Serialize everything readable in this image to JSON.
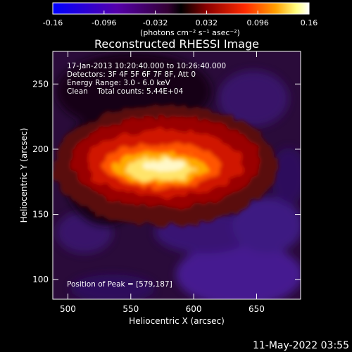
{
  "chart_data": {
    "type": "heatmap",
    "title": "Reconstructed RHESSI Image",
    "xlabel": "Heliocentric X (arcsec)",
    "ylabel": "Heliocentric Y (arcsec)",
    "xlim": [
      488,
      685
    ],
    "ylim": [
      85,
      275
    ],
    "xticks": [
      500,
      550,
      600,
      650
    ],
    "yticks": [
      100,
      150,
      200,
      250
    ],
    "colorbar": {
      "range": [
        -0.16,
        0.16
      ],
      "ticks": [
        "-0.16",
        "-0.096",
        "-0.032",
        "0.032",
        "0.096",
        "0.16"
      ],
      "tick_values": [
        -0.16,
        -0.096,
        -0.032,
        0.032,
        0.096,
        0.16
      ],
      "label": "(photons cm⁻² s⁻¹ asec⁻²)",
      "colors": [
        "#0000ff",
        "#4b0082",
        "#6a0dad",
        "#000000",
        "#8b0000",
        "#ff0000",
        "#ff8c00",
        "#ffff80",
        "#ffffff"
      ]
    },
    "annotations": [
      "17-Jan-2013 10:20:40.000 to 10:26:40.000",
      "Detectors: 3F 4F 5F 6F 7F 8F, Att 0",
      "Energy Range: 3.0 - 6.0 keV",
      "Clean    Total counts: 5.44E+04"
    ],
    "peak_label": "Position of Peak = [579,187]",
    "peak": [
      579,
      187
    ]
  },
  "footer": {
    "timestamp": "11-May-2022 03:55"
  }
}
